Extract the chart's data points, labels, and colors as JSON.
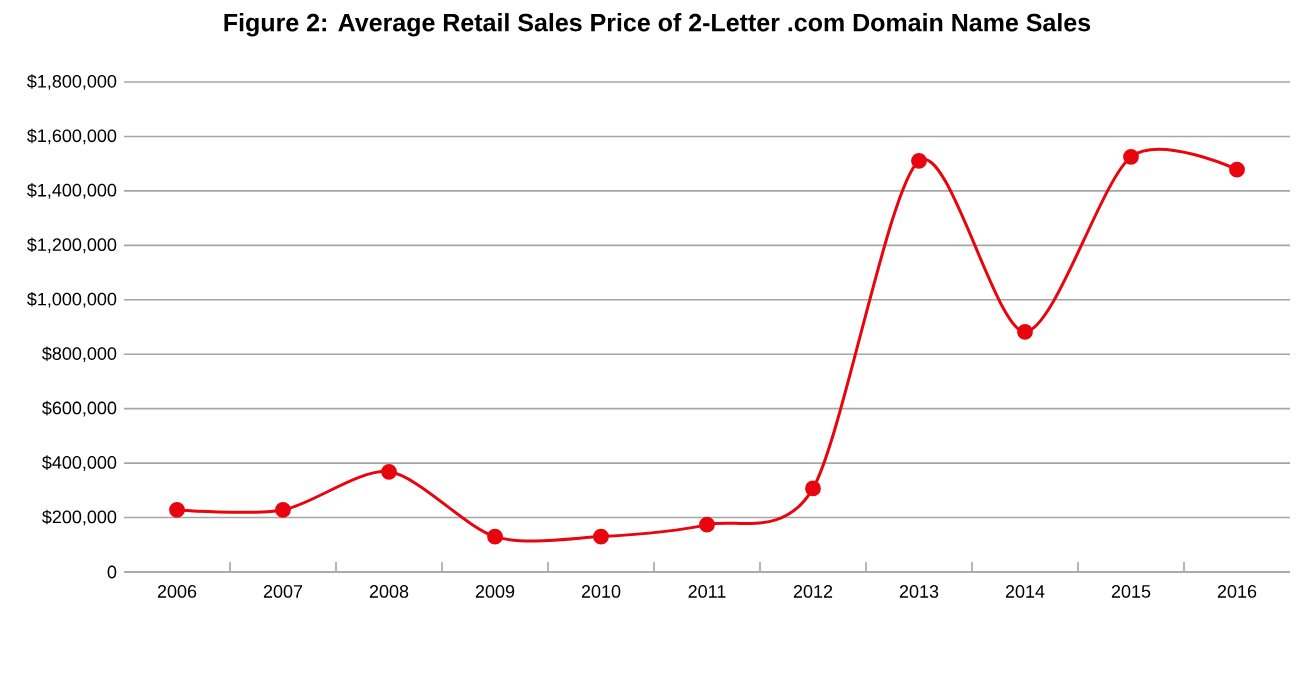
{
  "chart_data": {
    "type": "line",
    "title": "Figure 2: Average Retail Sales Price of 2-Letter .com Domain Name Sales",
    "categories": [
      "2006",
      "2007",
      "2008",
      "2009",
      "2010",
      "2011",
      "2012",
      "2013",
      "2014",
      "2015",
      "2016"
    ],
    "values": [
      228000,
      228000,
      368000,
      130000,
      130000,
      174000,
      307000,
      1510000,
      882000,
      1525000,
      1478000
    ],
    "color": "#e8050d",
    "marker": "circle",
    "grid": "y",
    "ylim": [
      0,
      1800000
    ],
    "yticks": [
      {
        "value": 0,
        "label": "0"
      },
      {
        "value": 200000,
        "label": "$200,000"
      },
      {
        "value": 400000,
        "label": "$400,000"
      },
      {
        "value": 600000,
        "label": "$600,000"
      },
      {
        "value": 800000,
        "label": "$800,000"
      },
      {
        "value": 1000000,
        "label": "$1,000,000"
      },
      {
        "value": 1200000,
        "label": "$1,200,000"
      },
      {
        "value": 1400000,
        "label": "$1,400,000"
      },
      {
        "value": 1600000,
        "label": "$1,600,000"
      },
      {
        "value": 1800000,
        "label": "$1,800,000"
      }
    ]
  }
}
